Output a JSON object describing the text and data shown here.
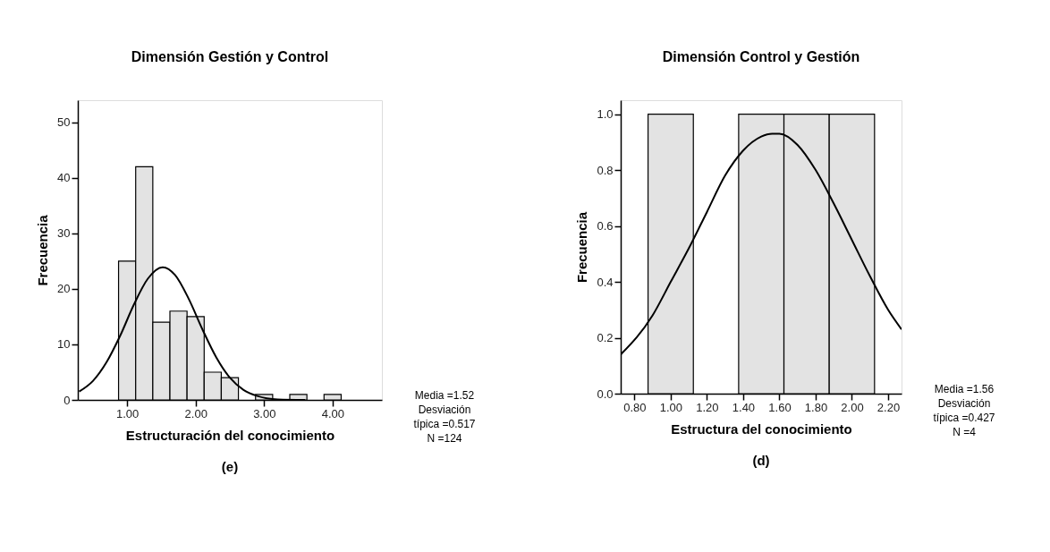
{
  "chart_data": [
    {
      "type": "histogram",
      "title": "Dimensión Gestión y Control",
      "xlabel": "Estructuración del conocimiento",
      "ylabel": "Frecuencia",
      "bins": [
        0.875,
        1.125,
        1.375,
        1.625,
        1.875,
        2.125,
        2.375,
        2.625,
        2.875,
        3.125,
        3.375,
        3.625,
        3.875,
        4.125
      ],
      "values": [
        25,
        42,
        14,
        16,
        15,
        5,
        4,
        0,
        1,
        0,
        1,
        0,
        1
      ],
      "color": "#e3e3e3",
      "series": [
        {
          "type": "line",
          "color": "#000000",
          "x": [
            0.3,
            0.5,
            0.7,
            0.9,
            1.1,
            1.3,
            1.52,
            1.7,
            1.9,
            2.1,
            2.3,
            2.5,
            2.7,
            2.9,
            3.2,
            3.6
          ],
          "values": [
            1.5,
            3.4,
            6.8,
            11.6,
            17.2,
            21.8,
            23.9,
            22.5,
            18.2,
            12.7,
            7.7,
            4.0,
            1.8,
            0.7,
            0.1,
            0
          ]
        }
      ],
      "xlim": [
        0.28,
        4.72
      ],
      "ylim": [
        0,
        54
      ],
      "xticks": [
        {
          "value": 1,
          "label": "1.00"
        },
        {
          "value": 2,
          "label": "2.00"
        },
        {
          "value": 3,
          "label": "3.00"
        },
        {
          "value": 4,
          "label": "4.00"
        }
      ],
      "yticks": [
        0,
        10,
        20,
        30,
        40,
        50
      ],
      "grid": false,
      "annotations": [
        "Media =1.52\nDesviación\ntípica =0.517\nN =124",
        "(e)"
      ]
    },
    {
      "type": "histogram",
      "title": "Dimensión Control y Gestión",
      "xlabel": "Estructura del conocimiento",
      "ylabel": "Frecuencia",
      "bins": [
        0.875,
        1.125,
        1.375,
        1.625,
        1.875,
        2.125
      ],
      "values": [
        1,
        0,
        1,
        1,
        1
      ],
      "color": "#e3e3e3",
      "series": [
        {
          "type": "line",
          "color": "#000000",
          "x": [
            0.724,
            0.9,
            1.0,
            1.1,
            1.2,
            1.3,
            1.4,
            1.5,
            1.56,
            1.6,
            1.7,
            1.8,
            1.9,
            2.0,
            2.1,
            2.2,
            2.274
          ],
          "values": [
            0.14,
            0.28,
            0.4,
            0.52,
            0.65,
            0.78,
            0.87,
            0.92,
            0.93,
            0.93,
            0.89,
            0.8,
            0.68,
            0.55,
            0.42,
            0.3,
            0.23
          ]
        }
      ],
      "xlim": [
        0.724,
        2.274
      ],
      "ylim": [
        0,
        1.05
      ],
      "xticks": [
        {
          "value": 0.8,
          "label": "0.80"
        },
        {
          "value": 1.0,
          "label": "1.00"
        },
        {
          "value": 1.2,
          "label": "1.20"
        },
        {
          "value": 1.4,
          "label": "1.40"
        },
        {
          "value": 1.6,
          "label": "1.60"
        },
        {
          "value": 1.8,
          "label": "1.80"
        },
        {
          "value": 2.0,
          "label": "2.00"
        },
        {
          "value": 2.2,
          "label": "2.20"
        }
      ],
      "yticks": [
        {
          "value": 0,
          "label": "0.0"
        },
        {
          "value": 0.2,
          "label": "0.2"
        },
        {
          "value": 0.4,
          "label": "0.4"
        },
        {
          "value": 0.6,
          "label": "0.6"
        },
        {
          "value": 0.8,
          "label": "0.8"
        },
        {
          "value": 1.0,
          "label": "1.0"
        }
      ],
      "grid": false,
      "annotations": [
        "Media =1.56\nDesviación\ntípica =0.427\nN =4",
        "(d)"
      ]
    }
  ]
}
